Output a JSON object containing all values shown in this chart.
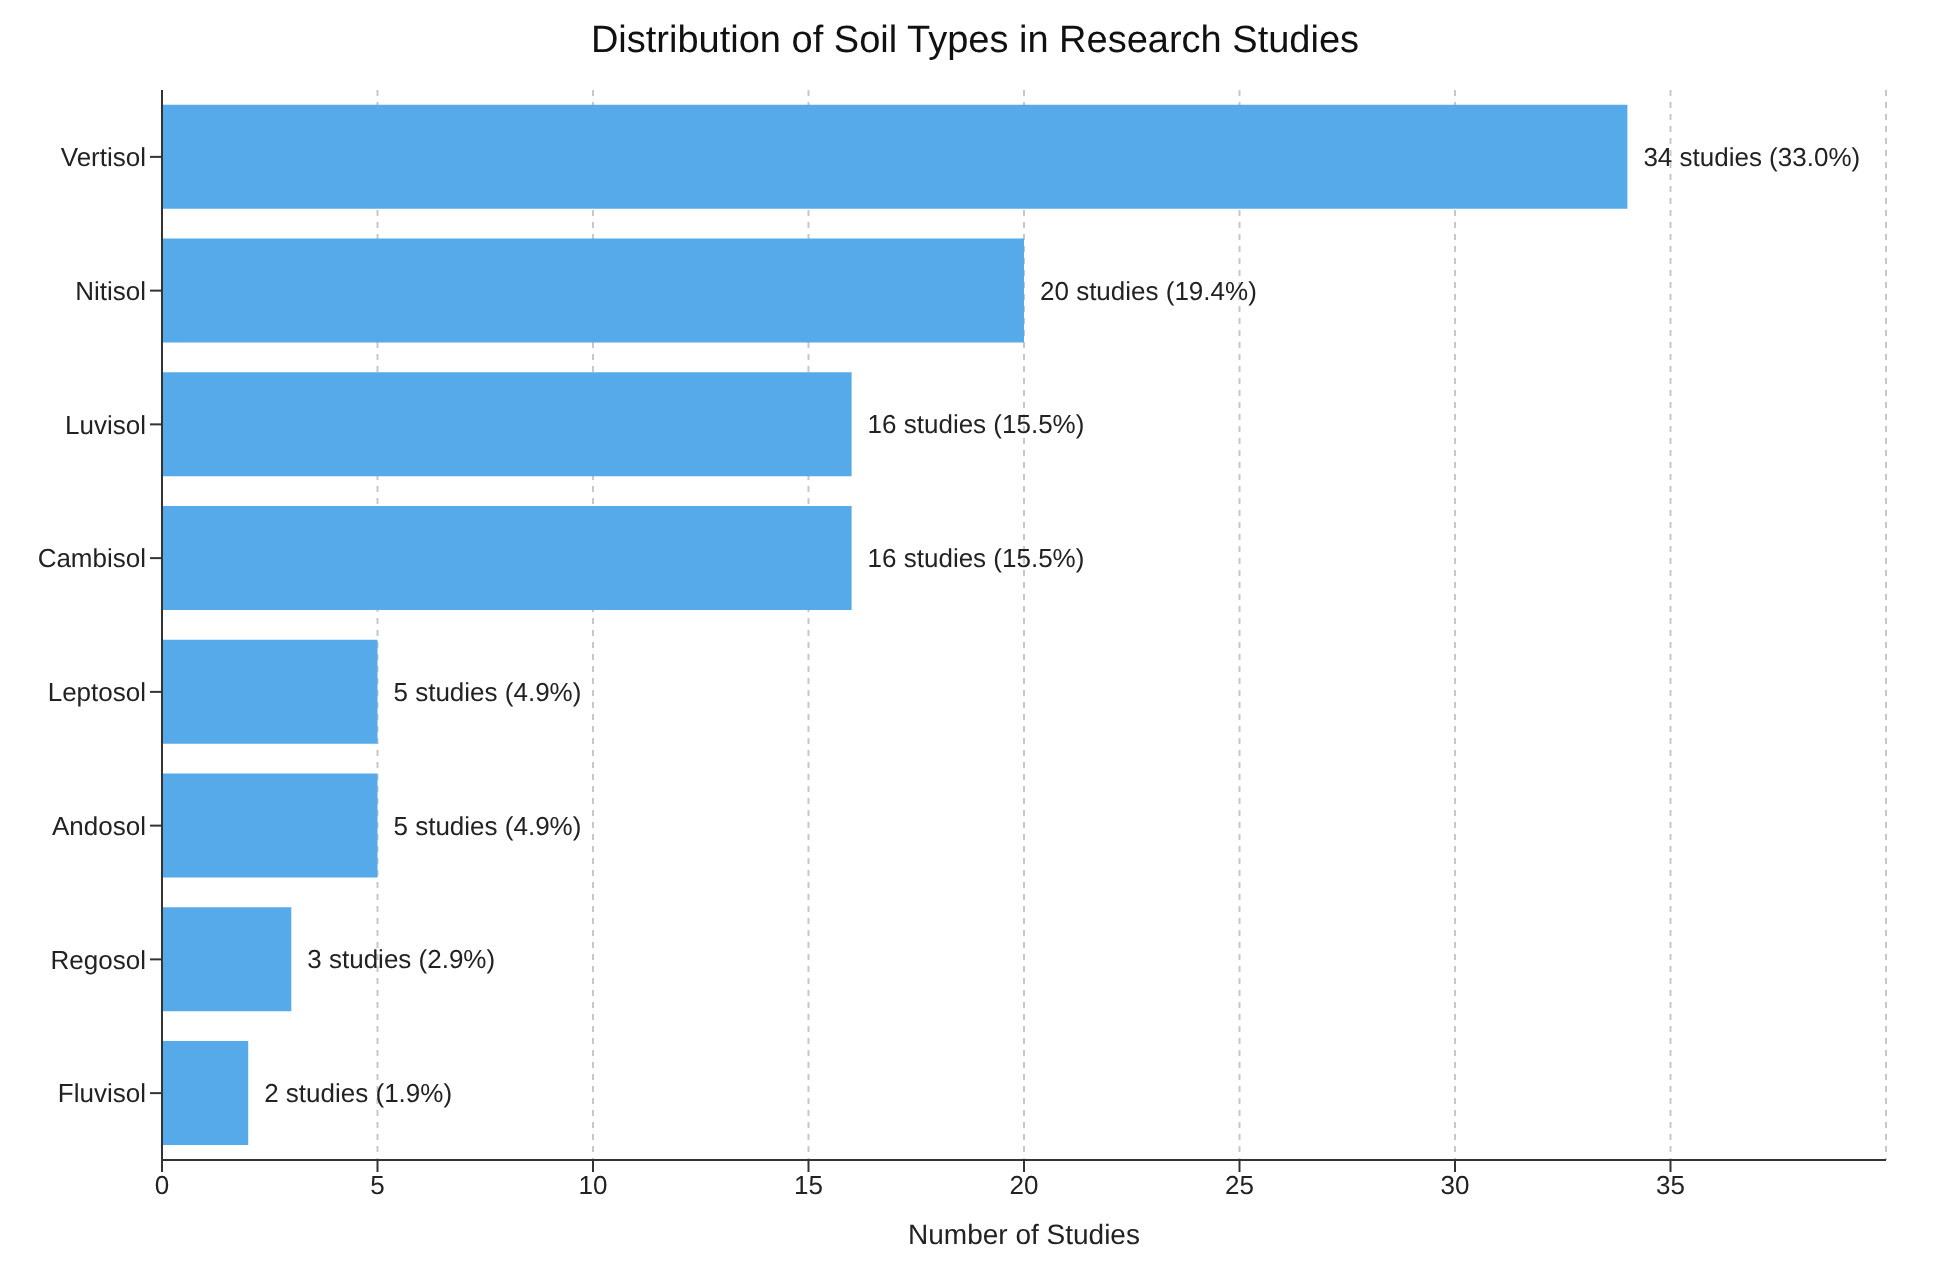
{
  "chart_data": {
    "type": "bar",
    "orientation": "horizontal",
    "title": "Distribution of Soil Types in Research Studies",
    "xlabel": "Number of Studies",
    "categories": [
      "Vertisol",
      "Nitisol",
      "Luvisol",
      "Cambisol",
      "Leptosol",
      "Andosol",
      "Regosol",
      "Fluvisol"
    ],
    "values": [
      34,
      20,
      16,
      16,
      5,
      5,
      3,
      2
    ],
    "value_labels": [
      "34 studies (33.0%)",
      "20 studies (19.4%)",
      "16 studies (15.5%)",
      "16 studies (15.5%)",
      "5 studies (4.9%)",
      "5 studies (4.9%)",
      "3 studies (2.9%)",
      "2 studies (1.9%)"
    ],
    "color": "#56aaea",
    "xlim": [
      0,
      40
    ],
    "xticks": [
      0,
      5,
      10,
      15,
      20,
      25,
      30,
      35
    ],
    "grid": "x"
  }
}
